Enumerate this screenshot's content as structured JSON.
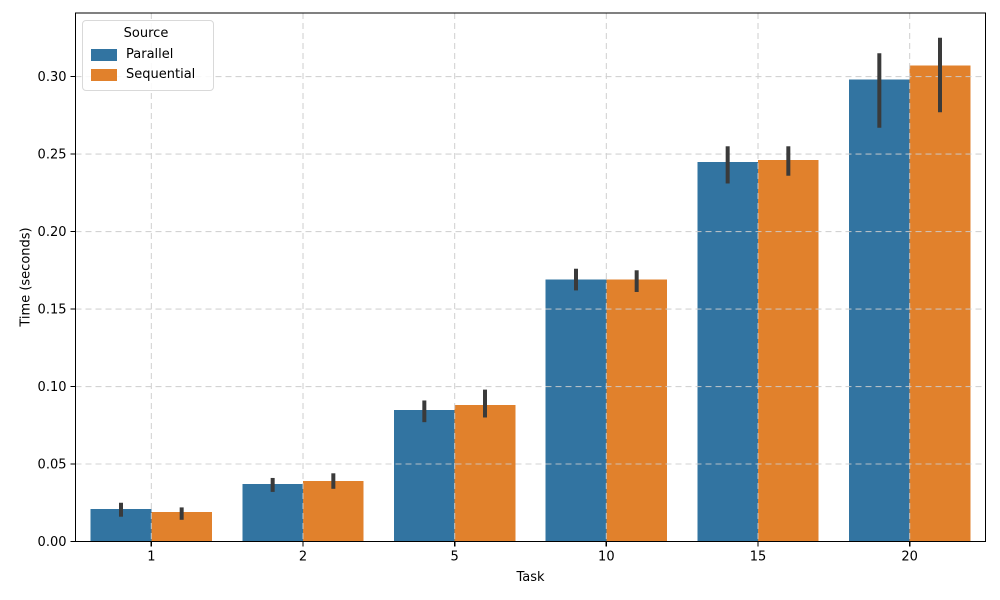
{
  "chart_data": {
    "type": "bar",
    "title": "",
    "xlabel": "Task",
    "ylabel": "Time (seconds)",
    "categories": [
      "1",
      "2",
      "5",
      "10",
      "15",
      "20"
    ],
    "series": [
      {
        "name": "Parallel",
        "color": "#3274a1",
        "values": [
          0.021,
          0.037,
          0.085,
          0.169,
          0.245,
          0.298
        ],
        "ci_low": [
          0.016,
          0.032,
          0.077,
          0.162,
          0.231,
          0.267
        ],
        "ci_high": [
          0.025,
          0.041,
          0.091,
          0.176,
          0.255,
          0.315
        ]
      },
      {
        "name": "Sequential",
        "color": "#e1812c",
        "values": [
          0.019,
          0.039,
          0.088,
          0.169,
          0.246,
          0.307
        ],
        "ci_low": [
          0.014,
          0.034,
          0.08,
          0.161,
          0.236,
          0.277
        ],
        "ci_high": [
          0.022,
          0.044,
          0.098,
          0.175,
          0.255,
          0.325
        ]
      }
    ],
    "ylim": [
      0,
      0.341
    ],
    "yticks": [
      0.0,
      0.05,
      0.1,
      0.15,
      0.2,
      0.25,
      0.3
    ],
    "ytick_labels": [
      "0.00",
      "0.05",
      "0.10",
      "0.15",
      "0.20",
      "0.25",
      "0.30"
    ],
    "grid": true,
    "grid_style": "dashed",
    "legend": {
      "title": "Source",
      "position": "upper-left"
    },
    "colors": {
      "error_bar": "#3a3a3a",
      "grid": "#cbcbcb",
      "spine": "#000000",
      "text": "#000000"
    }
  }
}
